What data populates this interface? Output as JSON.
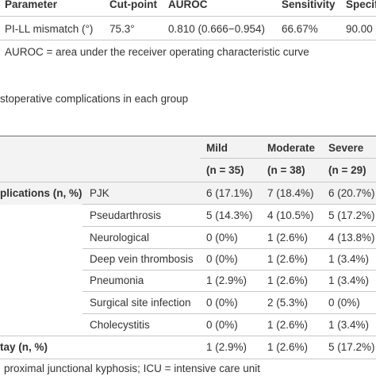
{
  "table1": {
    "headers": [
      "Parameter",
      "Cut-point",
      "AUROC",
      "Sensitivity",
      "Specif"
    ],
    "row": [
      "PI-LL mismatch (°)",
      "75.3°",
      "0.810 (0.666−0.954)",
      "66.67%",
      "90.00"
    ],
    "footnote": "AUROC = area under the receiver operating characteristic curve"
  },
  "table2": {
    "caption": "stoperative complications in each group",
    "groups": [
      {
        "name": "Mild",
        "n": "(n = 35)"
      },
      {
        "name": "Moderate",
        "n": "(n = 38)"
      },
      {
        "name": "Severe",
        "n": "(n = 29)"
      }
    ],
    "section_label": "plications (n, %)",
    "rows": [
      {
        "label": "PJK",
        "values": [
          "6 (17.1%)",
          "7 (18.4%)",
          "6 (20.7%)"
        ]
      },
      {
        "label": "Pseudarthrosis",
        "values": [
          "5 (14.3%)",
          "4 (10.5%)",
          "5 (17.2%)"
        ]
      },
      {
        "label": "Neurological",
        "values": [
          "0 (0%)",
          "1 (2.6%)",
          "4 (13.8%)"
        ]
      },
      {
        "label": "Deep vein thrombosis",
        "values": [
          "0 (0%)",
          "1 (2.6%)",
          "1 (3.4%)"
        ]
      },
      {
        "label": "Pneumonia",
        "values": [
          "1 (2.9%)",
          "1 (2.6%)",
          "1 (3.4%)"
        ]
      },
      {
        "label": "Surgical site infection",
        "values": [
          "0 (0%)",
          "2 (5.3%)",
          "0 (0%)"
        ]
      },
      {
        "label": "Cholecystitis",
        "values": [
          "0 (0%)",
          "1 (2.6%)",
          "1 (3.4%)"
        ]
      }
    ],
    "stay_label": "tay (n, %)",
    "stay_values": [
      "1 (2.9%)",
      "1 (2.6%)",
      "5 (17.2%)"
    ],
    "footnote": "proximal junctional kyphosis; ICU = intensive care unit"
  }
}
